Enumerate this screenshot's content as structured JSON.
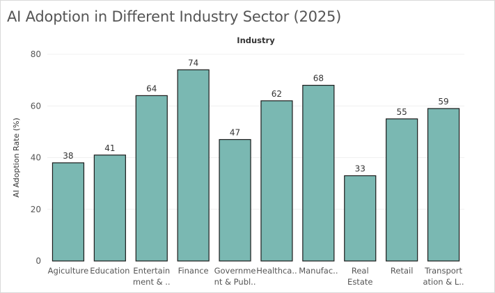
{
  "page": {
    "title": "AI Adoption in Different Industry Sector (2025)"
  },
  "chart_data": {
    "type": "bar",
    "title": "AI Adoption in Different Industry Sector (2025)",
    "column_header": "Industry",
    "xlabel": "",
    "ylabel": "AI Adoption Rate (%)",
    "ylim": [
      0,
      80
    ],
    "yticks": [
      0,
      20,
      40,
      60,
      80
    ],
    "grid": true,
    "categories": [
      "Agiculture",
      "Education",
      "Entertainment & ..",
      "Finance",
      "Government & Publ..",
      "Healthca..",
      "Manufac..",
      "Real Estate",
      "Retail",
      "Transportation & L.."
    ],
    "category_display_lines": [
      [
        "Agiculture"
      ],
      [
        "Education"
      ],
      [
        "Entertain",
        "ment & .."
      ],
      [
        "Finance"
      ],
      [
        "Governme",
        "nt & Publ.."
      ],
      [
        "Healthca.."
      ],
      [
        "Manufac.."
      ],
      [
        "Real",
        "Estate"
      ],
      [
        "Retail"
      ],
      [
        "Transport",
        "ation & L.."
      ]
    ],
    "values": [
      38,
      41,
      64,
      74,
      47,
      62,
      68,
      33,
      55,
      59
    ],
    "colors": {
      "bar_fill": "#7ab8b2",
      "bar_stroke": "#1a1a1a",
      "grid": "#f0f0f0",
      "text": "#555555",
      "label": "#333333"
    }
  }
}
